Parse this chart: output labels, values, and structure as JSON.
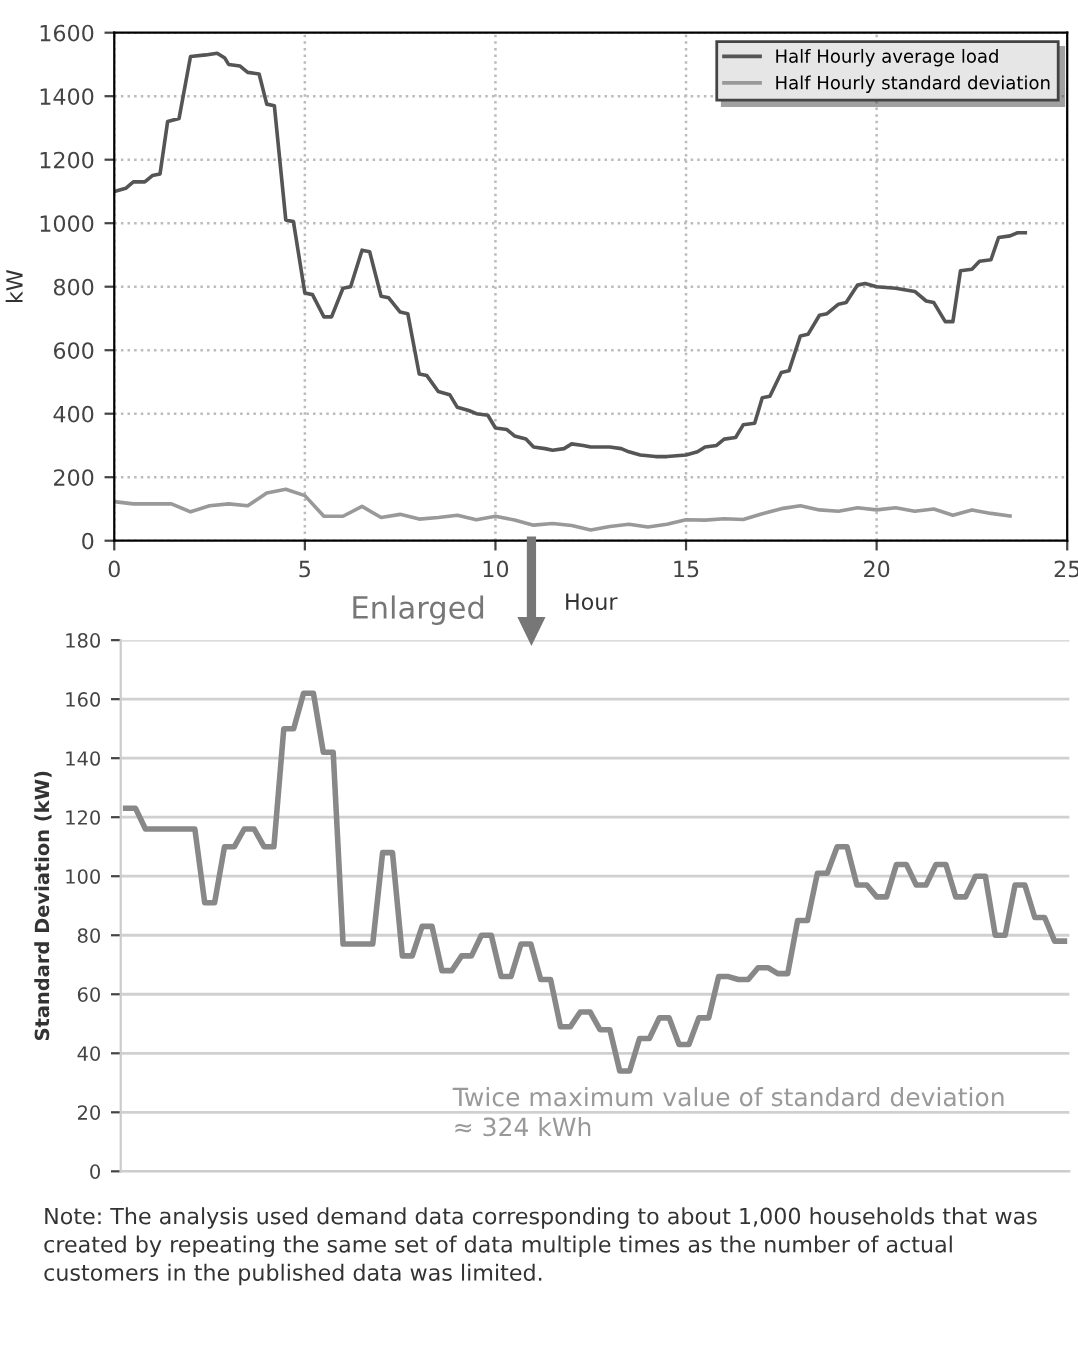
{
  "chart_data": [
    {
      "type": "line",
      "xlabel": "Hour",
      "ylabel": "kW",
      "xlim": [
        0,
        25
      ],
      "ylim": [
        0,
        1600
      ],
      "xticks": [
        0,
        5,
        10,
        15,
        20,
        25
      ],
      "yticks": [
        0,
        200,
        400,
        600,
        800,
        1000,
        1200,
        1400,
        1600
      ],
      "grid": true,
      "legend": "top right",
      "line_style": "solid",
      "marker": "none",
      "series": [
        {
          "name": "Half Hourly average load",
          "color": "#555555",
          "x": [
            0,
            0.3,
            0.5,
            0.8,
            1,
            1.2,
            1.4,
            1.7,
            2,
            2.4,
            2.7,
            2.9,
            3.0,
            3.3,
            3.5,
            3.8,
            4.0,
            4.2,
            4.5,
            4.7,
            5.0,
            5.2,
            5.5,
            5.7,
            6.0,
            6.2,
            6.5,
            6.7,
            7.0,
            7.2,
            7.5,
            7.7,
            8.0,
            8.2,
            8.5,
            8.8,
            9.0,
            9.3,
            9.5,
            9.8,
            10.0,
            10.3,
            10.5,
            10.8,
            11.0,
            11.3,
            11.5,
            11.8,
            12.0,
            12.3,
            12.5,
            13.0,
            13.3,
            13.5,
            13.8,
            14.2,
            14.5,
            15.0,
            15.3,
            15.5,
            15.8,
            16.0,
            16.3,
            16.5,
            16.8,
            17.0,
            17.2,
            17.5,
            17.7,
            18.0,
            18.2,
            18.5,
            18.7,
            19.0,
            19.2,
            19.5,
            19.7,
            20.0,
            20.5,
            21.0,
            21.3,
            21.5,
            21.8,
            22.0,
            22.2,
            22.5,
            22.7,
            23.0,
            23.2,
            23.5,
            23.7,
            23.9
          ],
          "values": [
            1100,
            1110,
            1130,
            1130,
            1150,
            1155,
            1320,
            1330,
            1525,
            1530,
            1535,
            1520,
            1500,
            1495,
            1475,
            1470,
            1375,
            1370,
            1010,
            1005,
            780,
            775,
            705,
            705,
            795,
            800,
            915,
            910,
            770,
            765,
            720,
            715,
            525,
            520,
            470,
            460,
            420,
            410,
            400,
            395,
            355,
            350,
            330,
            320,
            295,
            290,
            285,
            290,
            305,
            300,
            295,
            295,
            290,
            280,
            270,
            265,
            265,
            270,
            280,
            295,
            300,
            320,
            325,
            365,
            370,
            450,
            455,
            530,
            535,
            645,
            650,
            710,
            715,
            745,
            750,
            805,
            810,
            800,
            795,
            785,
            755,
            750,
            690,
            690,
            850,
            855,
            880,
            885,
            955,
            960,
            970,
            970
          ]
        },
        {
          "name": "Half Hourly standard deviation",
          "color": "#999999",
          "x": [
            0,
            0.5,
            1,
            1.5,
            2,
            2.5,
            3,
            3.5,
            4,
            4.5,
            5,
            5.5,
            6,
            6.5,
            7,
            7.5,
            8,
            8.5,
            9,
            9.5,
            10,
            10.5,
            11,
            11.5,
            12,
            12.5,
            13,
            13.5,
            14,
            14.5,
            15,
            15.5,
            16,
            16.5,
            17,
            17.5,
            18,
            18.5,
            19,
            19.5,
            20,
            20.5,
            21,
            21.5,
            22,
            22.5,
            23,
            23.5
          ],
          "values": [
            123,
            116,
            116,
            116,
            91,
            110,
            116,
            110,
            150,
            162,
            142,
            77,
            77,
            108,
            73,
            83,
            68,
            73,
            80,
            66,
            77,
            65,
            49,
            54,
            48,
            34,
            45,
            52,
            43,
            52,
            66,
            65,
            69,
            67,
            85,
            101,
            110,
            97,
            93,
            104,
            97,
            104,
            93,
            100,
            80,
            97,
            86,
            78
          ]
        }
      ],
      "annotations": [
        "Enlarged"
      ]
    },
    {
      "type": "line",
      "ylabel": "Standard Deviation (kW)",
      "ylim": [
        0,
        180
      ],
      "yticks": [
        0,
        20,
        40,
        60,
        80,
        100,
        120,
        140,
        160,
        180
      ],
      "grid": "y",
      "tick_labels": "y",
      "line_style": "solid",
      "marker": "none",
      "categories": [
        null,
        null,
        null,
        null,
        null,
        null,
        null,
        null,
        null,
        null,
        null,
        null,
        null,
        null,
        null,
        null,
        null,
        null,
        null,
        null,
        null,
        null,
        null,
        null,
        null,
        null,
        null,
        null,
        null,
        null,
        null,
        null,
        null,
        null,
        null,
        null,
        null,
        null,
        null,
        null,
        null,
        null,
        null,
        null,
        null,
        null,
        null,
        null,
        null,
        null,
        null,
        null,
        null,
        null,
        null,
        null,
        null,
        null,
        null,
        null,
        null,
        null,
        null,
        null,
        null,
        null,
        null,
        null,
        null,
        null,
        null,
        null,
        null,
        null,
        null,
        null,
        null,
        null,
        null,
        null,
        null,
        null,
        null,
        null,
        null,
        null,
        null,
        null,
        null,
        null,
        null,
        null,
        null,
        null,
        null,
        null
      ],
      "series": [
        {
          "color": "#888888",
          "values": [
            123,
            123,
            116,
            116,
            116,
            116,
            116,
            116,
            91,
            91,
            110,
            110,
            116,
            116,
            110,
            110,
            150,
            150,
            162,
            162,
            142,
            142,
            77,
            77,
            77,
            77,
            108,
            108,
            73,
            73,
            83,
            83,
            68,
            68,
            73,
            73,
            80,
            80,
            66,
            66,
            77,
            77,
            65,
            65,
            49,
            49,
            54,
            54,
            48,
            48,
            34,
            34,
            45,
            45,
            52,
            52,
            43,
            43,
            52,
            52,
            66,
            66,
            65,
            65,
            69,
            69,
            67,
            67,
            85,
            85,
            101,
            101,
            110,
            110,
            97,
            97,
            93,
            93,
            104,
            104,
            97,
            97,
            104,
            104,
            93,
            93,
            100,
            100,
            80,
            80,
            97,
            97,
            86,
            86,
            78,
            78
          ]
        }
      ],
      "annotations": [
        "Twice maximum value of standard deviation\n≈ 324 kWh",
        "Note: The analysis used demand data corresponding to about 1,000 households that was created by repeating the same set of data multiple times as the number of actual customers in the published data was limited."
      ]
    }
  ]
}
